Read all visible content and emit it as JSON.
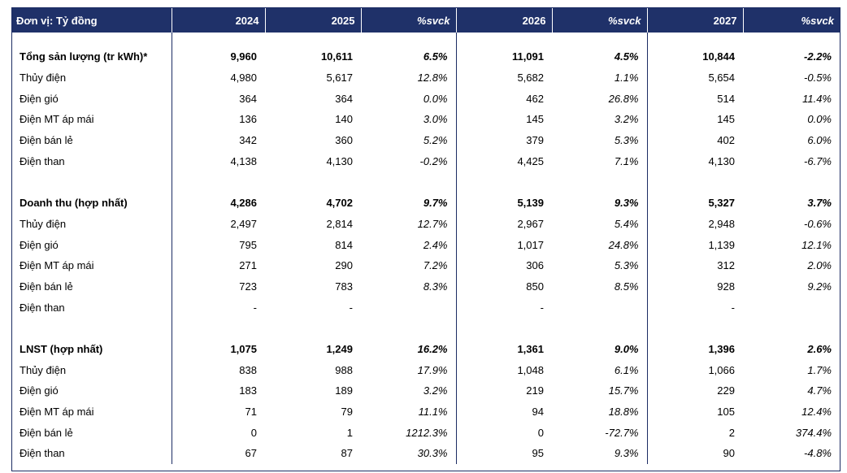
{
  "header": [
    "Đơn vị: Tỷ đồng",
    "2024",
    "2025",
    "%svck",
    "2026",
    "%svck",
    "2027",
    "%svck"
  ],
  "sections": [
    {
      "total": [
        "Tổng sản lượng (tr kWh)*",
        "9,960",
        "10,611",
        "6.5%",
        "11,091",
        "4.5%",
        "10,844",
        "-2.2%"
      ],
      "rows": [
        [
          "Thủy điện",
          "4,980",
          "5,617",
          "12.8%",
          "5,682",
          "1.1%",
          "5,654",
          "-0.5%"
        ],
        [
          "Điện gió",
          "364",
          "364",
          "0.0%",
          "462",
          "26.8%",
          "514",
          "11.4%"
        ],
        [
          "Điện MT áp mái",
          "136",
          "140",
          "3.0%",
          "145",
          "3.2%",
          "145",
          "0.0%"
        ],
        [
          "Điện bán lẻ",
          "342",
          "360",
          "5.2%",
          "379",
          "5.3%",
          "402",
          "6.0%"
        ],
        [
          "Điện than",
          "4,138",
          "4,130",
          "-0.2%",
          "4,425",
          "7.1%",
          "4,130",
          "-6.7%"
        ]
      ]
    },
    {
      "total": [
        "Doanh thu (hợp nhất)",
        "4,286",
        "4,702",
        "9.7%",
        "5,139",
        "9.3%",
        "5,327",
        "3.7%"
      ],
      "rows": [
        [
          "Thủy điện",
          "2,497",
          "2,814",
          "12.7%",
          "2,967",
          "5.4%",
          "2,948",
          "-0.6%"
        ],
        [
          "Điện gió",
          "795",
          "814",
          "2.4%",
          "1,017",
          "24.8%",
          "1,139",
          "12.1%"
        ],
        [
          "Điện MT áp mái",
          "271",
          "290",
          "7.2%",
          "306",
          "5.3%",
          "312",
          "2.0%"
        ],
        [
          "Điện bán lẻ",
          "723",
          "783",
          "8.3%",
          "850",
          "8.5%",
          "928",
          "9.2%"
        ],
        [
          "Điện than",
          "-",
          "-",
          "",
          "-",
          "",
          "-",
          ""
        ]
      ]
    },
    {
      "total": [
        "LNST (hợp nhất)",
        "1,075",
        "1,249",
        "16.2%",
        "1,361",
        "9.0%",
        "1,396",
        "2.6%"
      ],
      "rows": [
        [
          "Thủy điện",
          "838",
          "988",
          "17.9%",
          "1,048",
          "6.1%",
          "1,066",
          "1.7%"
        ],
        [
          "Điện gió",
          "183",
          "189",
          "3.2%",
          "219",
          "15.7%",
          "229",
          "4.7%"
        ],
        [
          "Điện MT áp mái",
          "71",
          "79",
          "11.1%",
          "94",
          "18.8%",
          "105",
          "12.4%"
        ],
        [
          "Điện bán lẻ",
          "0",
          "1",
          "1212.3%",
          "0",
          "-72.7%",
          "2",
          "374.4%"
        ],
        [
          "Điện than",
          "67",
          "87",
          "30.3%",
          "95",
          "9.3%",
          "90",
          "-4.8%"
        ]
      ]
    }
  ]
}
